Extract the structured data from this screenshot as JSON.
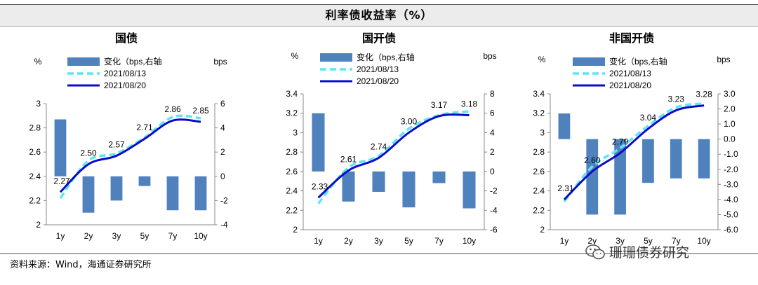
{
  "main_title": "利率债收益率（%）",
  "source": "资料来源：Wind，海通证券研究所",
  "watermark": "珊珊债券研究",
  "colors": {
    "bar": "#4f81bd",
    "line1": "#5ee6f2",
    "line2": "#0b0bc8"
  },
  "legend": {
    "change": "变化（bps,右轴",
    "date1": "2021/08/13",
    "date2": "2021/08/20"
  },
  "chart_data": [
    {
      "type": "bar+line",
      "title": "国债",
      "left_unit": "%",
      "right_unit": "bps",
      "categories": [
        "1y",
        "2y",
        "3y",
        "5y",
        "7y",
        "10y"
      ],
      "ylim_left": [
        2.0,
        3.0
      ],
      "yticks_left": [
        "2",
        "2.2",
        "2.4",
        "2.6",
        "2.8",
        "3"
      ],
      "ylim_right": [
        -4,
        6
      ],
      "yticks_right": [
        "-4",
        "-2",
        "0",
        "2",
        "4",
        "6"
      ],
      "series": [
        {
          "name": "变化（bps,右轴",
          "kind": "bar",
          "axis": "right",
          "values": [
            4.7,
            -3.0,
            -2.0,
            -0.8,
            -2.8,
            -2.8
          ]
        },
        {
          "name": "2021/08/13",
          "kind": "line",
          "axis": "left",
          "values": [
            2.22,
            2.53,
            2.59,
            2.72,
            2.89,
            2.88
          ]
        },
        {
          "name": "2021/08/20",
          "kind": "line",
          "axis": "left",
          "values": [
            2.27,
            2.5,
            2.57,
            2.71,
            2.86,
            2.85
          ]
        }
      ],
      "data_labels": [
        "2.27",
        "2.50",
        "2.57",
        "2.71",
        "2.86",
        "2.85"
      ]
    },
    {
      "type": "bar+line",
      "title": "国开债",
      "left_unit": "%",
      "right_unit": "bps",
      "categories": [
        "1y",
        "2y",
        "3y",
        "5y",
        "7y",
        "10y"
      ],
      "ylim_left": [
        2.0,
        3.4
      ],
      "yticks_left": [
        "2",
        "2.2",
        "2.4",
        "2.6",
        "2.8",
        "3",
        "3.2",
        "3.4"
      ],
      "ylim_right": [
        -6,
        8
      ],
      "yticks_right": [
        "-6",
        "-4",
        "-2",
        "0",
        "2",
        "4",
        "6",
        "8"
      ],
      "series": [
        {
          "name": "变化（bps,右轴",
          "kind": "bar",
          "axis": "right",
          "values": [
            6.0,
            -3.1,
            -2.1,
            -3.7,
            -1.2,
            -3.8
          ]
        },
        {
          "name": "2021/08/13",
          "kind": "line",
          "axis": "left",
          "values": [
            2.27,
            2.64,
            2.76,
            3.04,
            3.18,
            3.22
          ]
        },
        {
          "name": "2021/08/20",
          "kind": "line",
          "axis": "left",
          "values": [
            2.33,
            2.61,
            2.74,
            3.0,
            3.17,
            3.18
          ]
        }
      ],
      "data_labels": [
        "2.33",
        "2.61",
        "2.74",
        "3.00",
        "3.17",
        "3.18"
      ]
    },
    {
      "type": "bar+line",
      "title": "非国开债",
      "left_unit": "%",
      "right_unit": "bps",
      "categories": [
        "1y",
        "2y",
        "3y",
        "5y",
        "7y",
        "10y"
      ],
      "ylim_left": [
        2.0,
        3.4
      ],
      "yticks_left": [
        "2",
        "2.2",
        "2.4",
        "2.6",
        "2.8",
        "3",
        "3.2",
        "3.4"
      ],
      "ylim_right": [
        -6.0,
        3.0
      ],
      "yticks_right": [
        "-6.0",
        "-5.0",
        "-4.0",
        "-3.0",
        "-2.0",
        "-1.0",
        "0.0",
        "1.0",
        "2.0",
        "3.0"
      ],
      "series": [
        {
          "name": "变化（bps,右轴",
          "kind": "bar",
          "axis": "right",
          "values": [
            1.7,
            -5.0,
            -5.0,
            -2.9,
            -2.6,
            -2.6
          ]
        },
        {
          "name": "2021/08/13",
          "kind": "line",
          "axis": "left",
          "values": [
            2.29,
            2.65,
            2.84,
            3.07,
            3.26,
            3.3
          ]
        },
        {
          "name": "2021/08/20",
          "kind": "line",
          "axis": "left",
          "values": [
            2.31,
            2.6,
            2.79,
            3.04,
            3.23,
            3.28
          ]
        }
      ],
      "data_labels": [
        "2.31",
        "2.60",
        "2.79",
        "3.04",
        "3.23",
        "3.28"
      ]
    }
  ]
}
